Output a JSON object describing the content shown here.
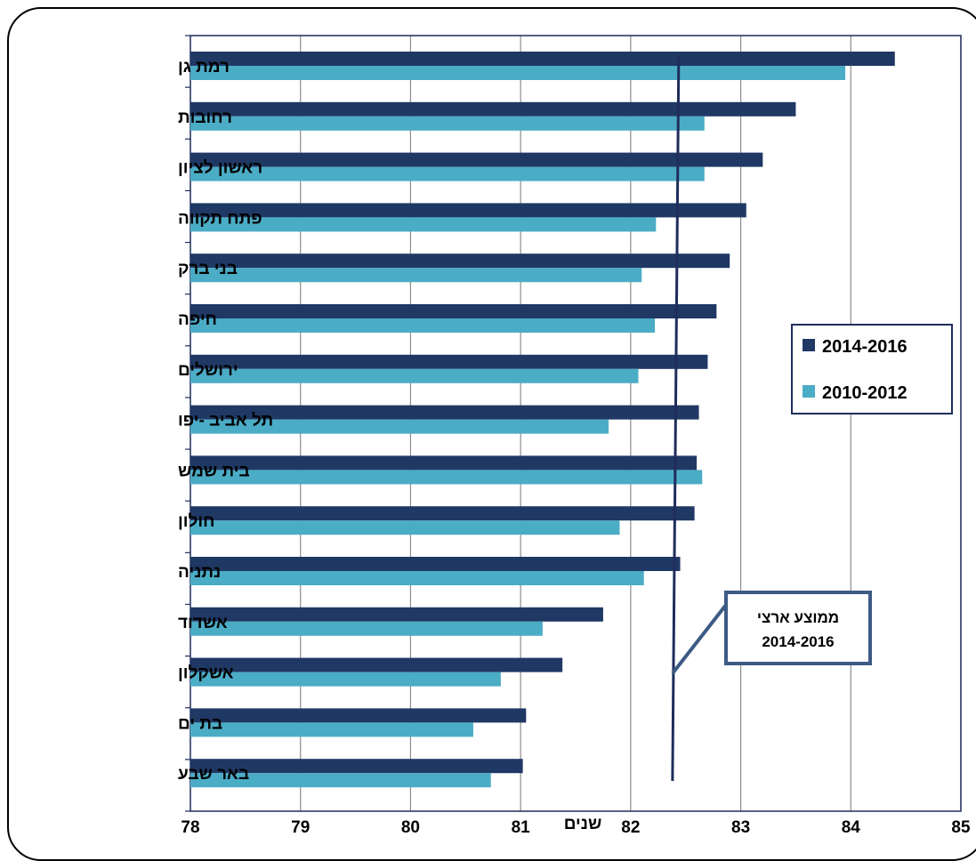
{
  "chart_data": {
    "type": "bar",
    "orientation": "horizontal",
    "categories": [
      "רמת גן",
      "רחובות",
      "ראשון לציון",
      "פתח תקווה",
      "בני ברק",
      "חיפה",
      "ירושלים",
      "תל אביב -יפו",
      "בית שמש",
      "חולון",
      "נתניה",
      "אשדוד",
      "אשקלון",
      "בת ים",
      "באר שבע"
    ],
    "series": [
      {
        "name": "2014-2016",
        "color": "#1f3864",
        "values": [
          84.4,
          83.5,
          83.2,
          83.05,
          82.9,
          82.78,
          82.7,
          82.62,
          82.6,
          82.58,
          82.45,
          81.75,
          81.38,
          81.05,
          81.02
        ]
      },
      {
        "name": "2010-2012",
        "color": "#4bacc6",
        "values": [
          83.95,
          82.67,
          82.67,
          82.23,
          82.1,
          82.22,
          82.07,
          81.8,
          82.65,
          81.9,
          82.12,
          81.2,
          80.82,
          80.57,
          80.73
        ]
      }
    ],
    "xlim": [
      78,
      85
    ],
    "xticks": [
      78,
      79,
      80,
      81,
      82,
      83,
      84,
      85
    ],
    "xlabel": "שנים",
    "ylabel": "",
    "grid": true,
    "legend_position": "right",
    "reference_line": {
      "value": 82.38,
      "label_line1": "ממוצע ארצי",
      "label_line2": "2014-2016"
    }
  }
}
